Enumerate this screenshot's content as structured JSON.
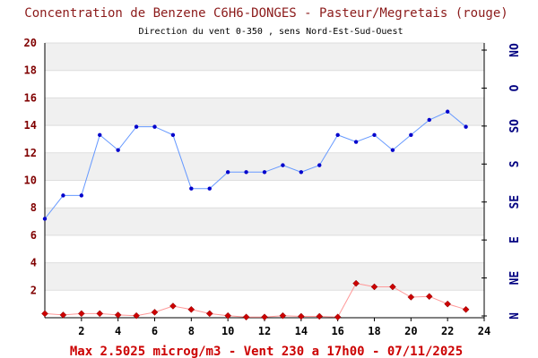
{
  "chart_data": {
    "type": "line",
    "title": "Concentration de Benzene C6H6-DONGES - Pasteur/Megretais (rouge)",
    "subtitle": "Direction du vent 0-350 , sens Nord-Est-Sud-Ouest",
    "footer": "Max 2.5025 microg/m3 - Vent 230  a 17h00 - 07/11/2025",
    "xlim": [
      0,
      24
    ],
    "ylim": [
      0,
      20
    ],
    "x_ticks": [
      "2",
      "4",
      "6",
      "8",
      "10",
      "12",
      "14",
      "16",
      "18",
      "20",
      "22",
      "24"
    ],
    "y_ticks": [
      "2",
      "4",
      "6",
      "8",
      "10",
      "12",
      "14",
      "16",
      "18",
      "20"
    ],
    "wind_ticks": [
      "N",
      "NE",
      "E",
      "SE",
      "S",
      "SO",
      "O",
      "NO"
    ],
    "grid": true,
    "series": [
      {
        "color": "#cc0000",
        "line_color": "#ff9999",
        "marker": "diamond",
        "x": [
          0,
          1,
          2,
          3,
          4,
          5,
          6,
          7,
          8,
          9,
          10,
          11,
          12,
          13,
          14,
          15,
          16,
          17,
          18,
          19,
          20,
          21,
          22,
          23
        ],
        "values": [
          0.3,
          0.2,
          0.3,
          0.3,
          0.2,
          0.15,
          0.4,
          0.85,
          0.6,
          0.3,
          0.15,
          0.05,
          0.05,
          0.15,
          0.1,
          0.1,
          0.05,
          2.5,
          2.25,
          2.25,
          1.5,
          1.55,
          1.0,
          0.6
        ]
      },
      {
        "color": "#0000cc",
        "line_color": "#6699ff",
        "marker": "dot",
        "x": [
          0,
          1,
          2,
          3,
          4,
          5,
          6,
          7,
          8,
          9,
          10,
          11,
          12,
          13,
          14,
          15,
          16,
          17,
          18,
          19,
          20,
          21,
          22,
          23
        ],
        "values": [
          7.2,
          8.9,
          8.9,
          13.3,
          12.2,
          13.9,
          13.9,
          13.3,
          9.4,
          9.4,
          10.6,
          10.6,
          10.6,
          11.1,
          10.6,
          11.1,
          13.3,
          12.8,
          13.3,
          12.2,
          13.3,
          14.4,
          15.0,
          13.9
        ]
      }
    ]
  }
}
